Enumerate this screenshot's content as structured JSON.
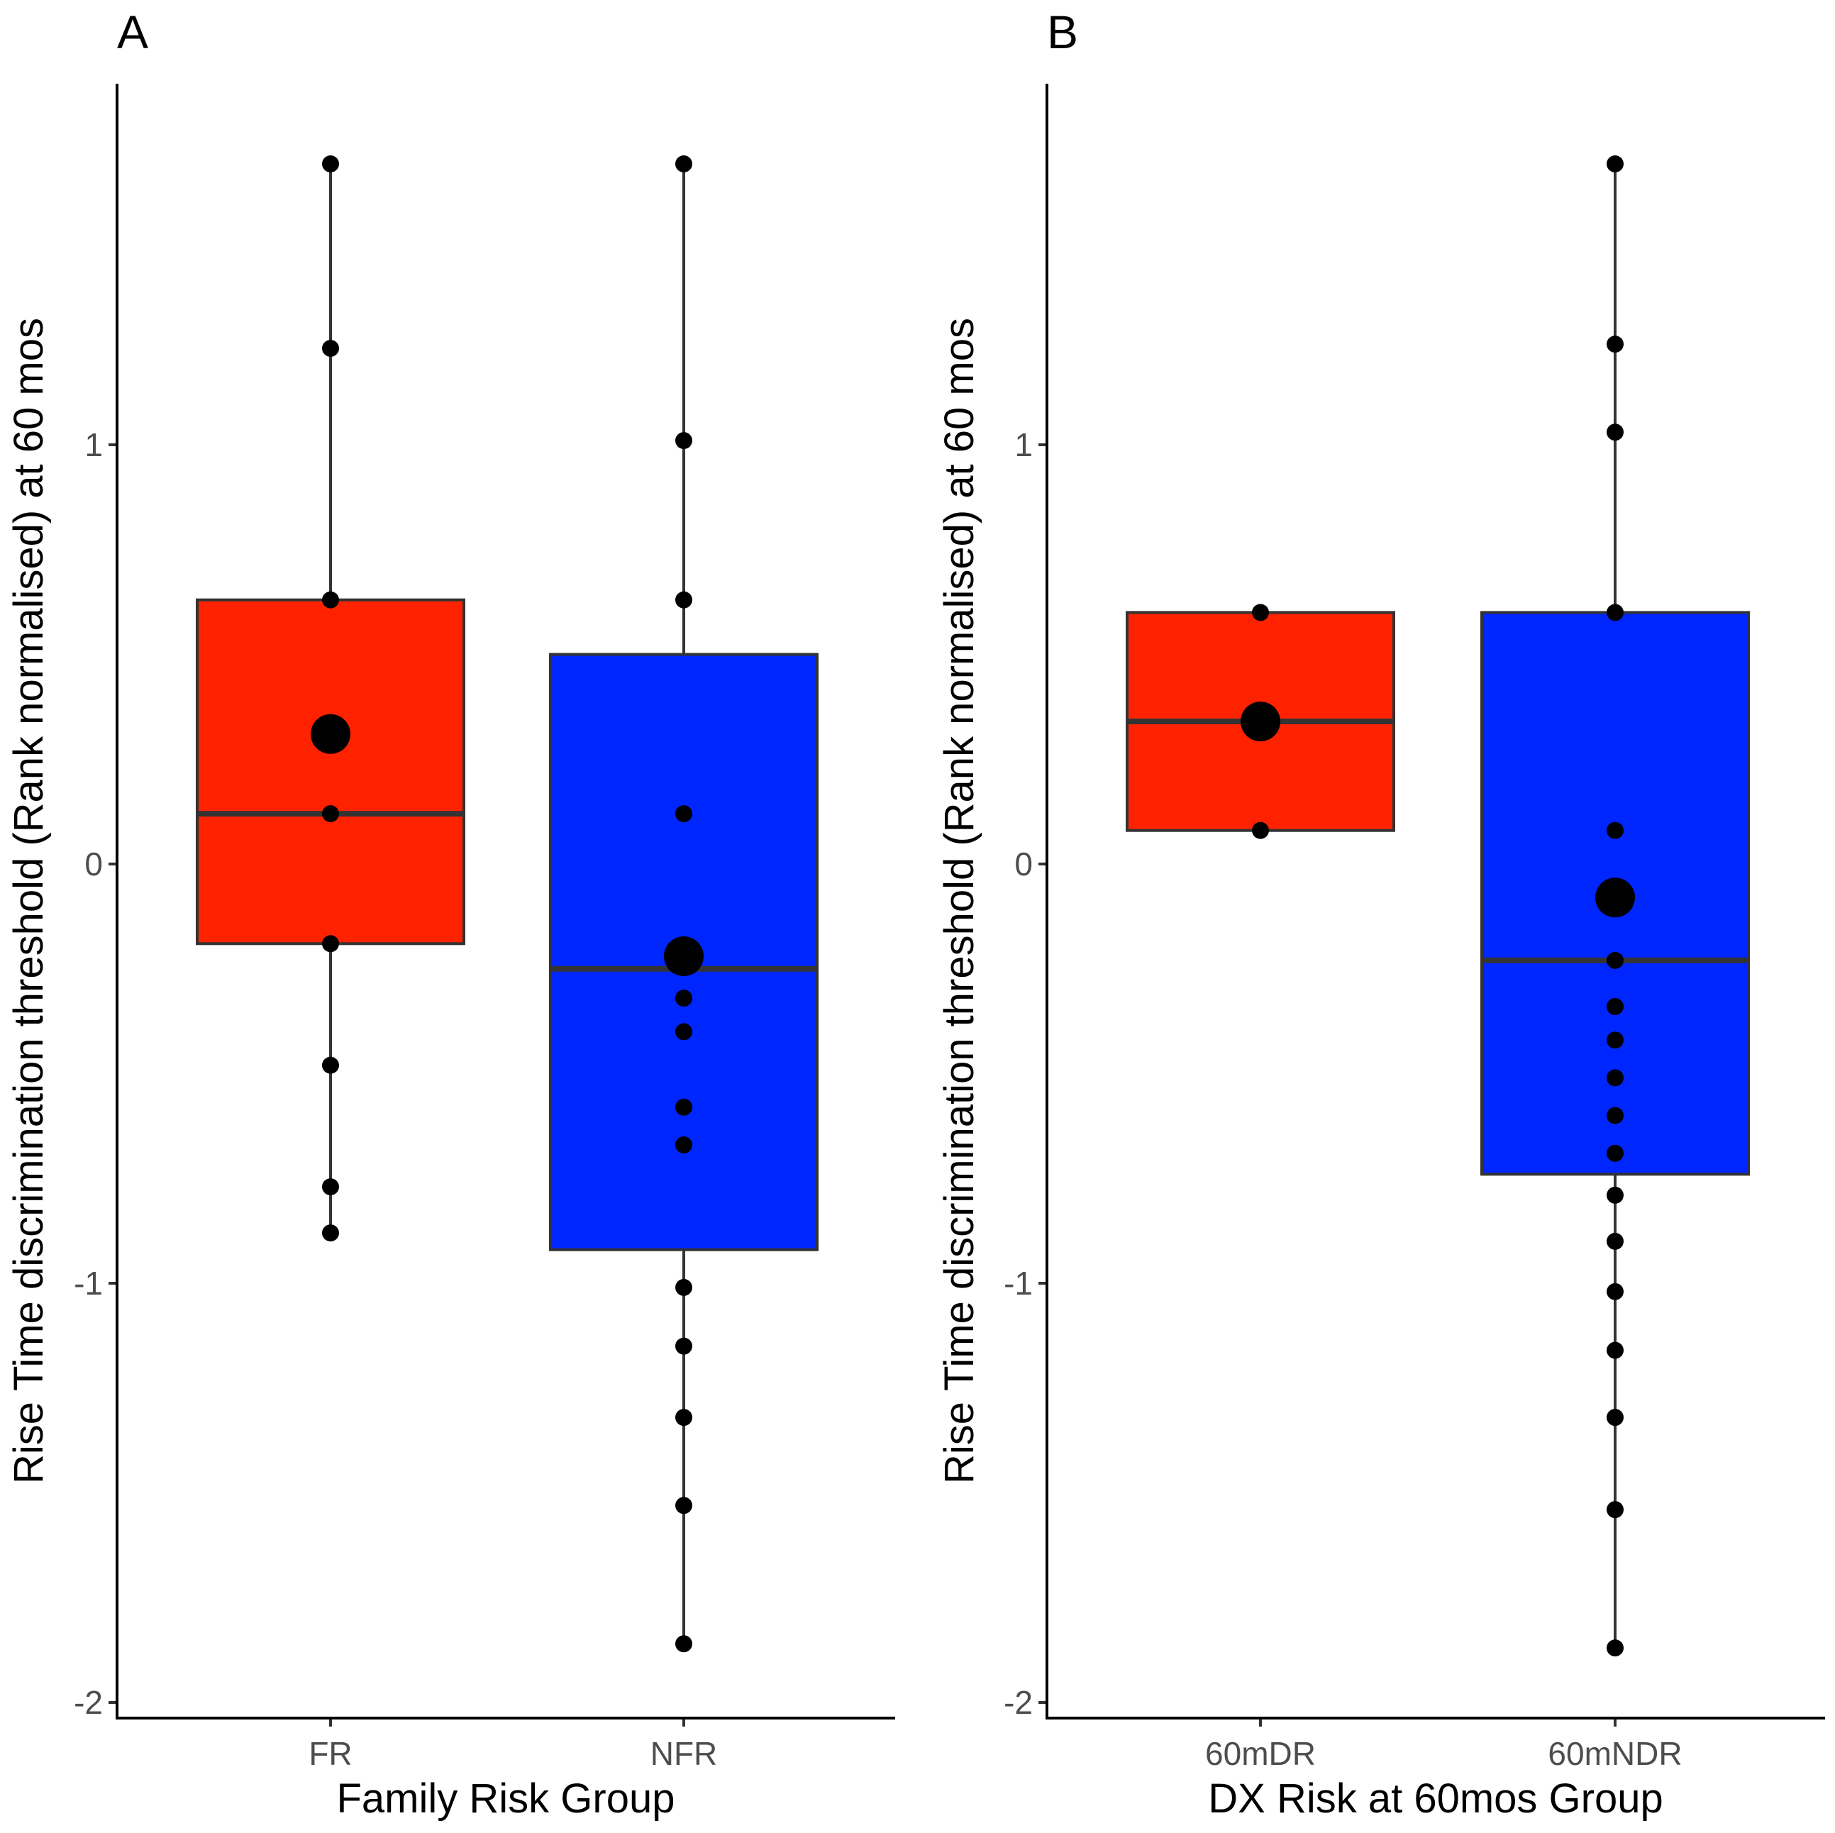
{
  "chart_data": [
    {
      "type": "box",
      "panel_label": "A",
      "xlabel": "Family Risk Group",
      "ylabel": "Rise Time discrimination threshold (Rank normalised) at 60 mos",
      "ylim": [
        -2.02,
        1.85
      ],
      "yticks": [
        -2,
        -1,
        0,
        1
      ],
      "ytick_labels": [
        "-2",
        "-1",
        "0",
        "1"
      ],
      "grid": false,
      "groups": [
        {
          "name": "FR",
          "color": "#FF2200",
          "q1": -0.19,
          "median": 0.12,
          "q3": 0.63,
          "whisker_low": -0.88,
          "whisker_high": 1.67,
          "mean": 0.31,
          "points": [
            1.67,
            1.23,
            0.63,
            0.12,
            -0.19,
            -0.48,
            -0.77,
            -0.88
          ]
        },
        {
          "name": "NFR",
          "color": "#0026FF",
          "q1": -0.92,
          "median": -0.25,
          "q3": 0.5,
          "whisker_low": -1.86,
          "whisker_high": 1.67,
          "mean": -0.22,
          "points": [
            1.67,
            1.01,
            0.63,
            0.12,
            -0.2,
            -0.32,
            -0.4,
            -0.58,
            -0.67,
            -1.01,
            -1.15,
            -1.32,
            -1.53,
            -1.86
          ]
        }
      ]
    },
    {
      "type": "box",
      "panel_label": "B",
      "xlabel": "DX Risk at 60mos Group",
      "ylabel": "Rise Time discrimination threshold (Rank normalised) at 60 mos",
      "ylim": [
        -2.02,
        1.85
      ],
      "yticks": [
        -2,
        -1,
        0,
        1
      ],
      "ytick_labels": [
        "-2",
        "-1",
        "0",
        "1"
      ],
      "grid": false,
      "groups": [
        {
          "name": "60mDR",
          "color": "#FF2200",
          "q1": 0.08,
          "median": 0.34,
          "q3": 0.6,
          "whisker_low": 0.08,
          "whisker_high": 0.6,
          "mean": 0.34,
          "points": [
            0.6,
            0.08
          ]
        },
        {
          "name": "60mNDR",
          "color": "#0026FF",
          "q1": -0.74,
          "median": -0.23,
          "q3": 0.6,
          "whisker_low": -1.87,
          "whisker_high": 1.67,
          "mean": -0.08,
          "points": [
            1.67,
            1.24,
            1.03,
            0.6,
            0.08,
            -0.23,
            -0.34,
            -0.42,
            -0.51,
            -0.6,
            -0.69,
            -0.79,
            -0.9,
            -1.02,
            -1.16,
            -1.32,
            -1.54,
            -1.87
          ]
        }
      ]
    }
  ]
}
